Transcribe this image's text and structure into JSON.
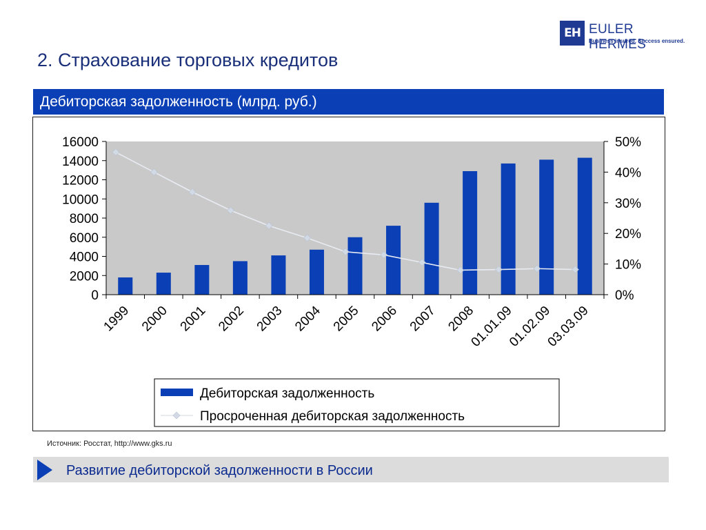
{
  "logo": {
    "mark": "EH",
    "name": "EULER HERMES",
    "tagline": "Business insured. Success ensured."
  },
  "page_title": "2. Страхование торговых кредитов",
  "section_title": "Дебиторская задолженность (млрд. руб.)",
  "source_note": "Источник: Росстат, http://www.gks.ru",
  "bottom_banner": "Развитие дебиторской задолженности в России",
  "colors": {
    "accent": "#0a3fb5",
    "title": "#1a2f7a",
    "bar": "#0a3fb5",
    "line": "#d2dae5",
    "plot_bg": "#c9c9c9",
    "banner_bg": "#dcdcdc"
  },
  "chart_data": {
    "type": "bar",
    "categories": [
      "1999",
      "2000",
      "2001",
      "2002",
      "2003",
      "2004",
      "2005",
      "2006",
      "2007",
      "2008",
      "01.01.09",
      "01.02.09",
      "03.03.09"
    ],
    "series": [
      {
        "name": "Дебиторская задолженность",
        "type": "bar",
        "axis": "left",
        "values": [
          1800,
          2300,
          3100,
          3500,
          4100,
          4700,
          6000,
          7200,
          9600,
          12900,
          13700,
          14100,
          14300
        ]
      },
      {
        "name": "Просроченная дебиторская задолженность",
        "type": "line",
        "axis": "right",
        "values": [
          46.5,
          40,
          33.5,
          27.5,
          22.5,
          18.5,
          14,
          13,
          10.5,
          8,
          8.2,
          8.5,
          8.2
        ]
      }
    ],
    "y_left": {
      "ticks": [
        "0",
        "2000",
        "4000",
        "6000",
        "8000",
        "10000",
        "12000",
        "14000",
        "16000"
      ],
      "lim": [
        0,
        16000
      ]
    },
    "y_right": {
      "ticks": [
        "0%",
        "10%",
        "20%",
        "30%",
        "40%",
        "50%"
      ],
      "lim": [
        0,
        50
      ]
    },
    "grid": false,
    "legend": "bottom-center"
  }
}
